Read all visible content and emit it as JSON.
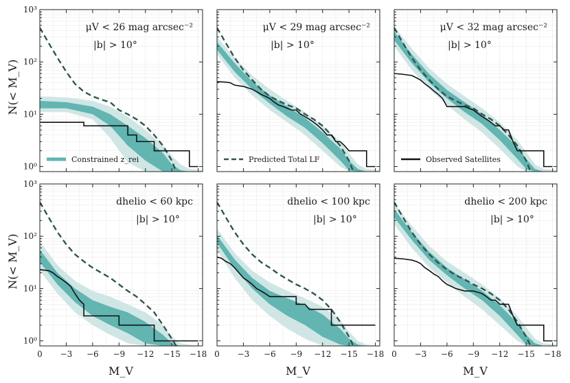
{
  "figure": {
    "ylabel": "N(< M_V)",
    "xlabel": "M_V",
    "legend": {
      "band": "Constrained z_rei",
      "dashed": "Predicted Total LF",
      "solid": "Observed Satellites"
    }
  },
  "colors": {
    "band_outer": "#cfe6e5",
    "band_inner": "#62b5b1",
    "dashed": "#2f5550",
    "solid": "#111111",
    "grid": "#e6e6e6"
  },
  "chart_data": [
    {
      "type": "line",
      "annotation": [
        "μV < 26 mag arcsec⁻²",
        "|b| > 10°"
      ],
      "legend_entry": "band",
      "x": [
        0,
        -3,
        -6,
        -9,
        -12,
        -15,
        -18
      ],
      "xlim": [
        0,
        -18.5
      ],
      "ylim": [
        0.8,
        1000
      ],
      "yscale": "log",
      "xticks": [
        "0",
        "−3",
        "−6",
        "−9",
        "−12",
        "−15",
        "−18"
      ],
      "yticks": [
        "10⁰",
        "10¹",
        "10²",
        "10³"
      ],
      "grid": true,
      "dashed_x": [
        0,
        -1,
        -2,
        -3,
        -4,
        -5,
        -6,
        -7,
        -8,
        -9,
        -10,
        -11,
        -12,
        -13,
        -14,
        -15,
        -15.5
      ],
      "dashed_y": [
        450,
        230,
        120,
        65,
        38,
        27,
        22,
        19,
        17,
        12,
        10,
        8,
        6,
        4,
        2.5,
        1.3,
        0.8
      ],
      "solid_x": [
        0,
        -5,
        -5,
        -10,
        -10,
        -11,
        -11,
        -12,
        -12,
        -13,
        -13,
        -14,
        -14,
        -17,
        -17,
        -18
      ],
      "solid_y": [
        7,
        7,
        6,
        6,
        4,
        4,
        3,
        3,
        3,
        3,
        2,
        2,
        2,
        2,
        1,
        1
      ],
      "outer_x": [
        0,
        -3,
        -6,
        -8,
        -10,
        -12,
        -14,
        -15,
        -16,
        -17,
        -18.5
      ],
      "outer_hi": [
        22,
        21,
        18,
        14,
        9,
        5,
        2.5,
        1.6,
        1.1,
        0.9,
        0.85
      ],
      "outer_lo": [
        11,
        11,
        8,
        3.5,
        1.2,
        0.8,
        0.8,
        0.8,
        0.8,
        0.8,
        0.8
      ],
      "inner_x": [
        0,
        -3,
        -6,
        -8,
        -10,
        -12,
        -14,
        -15,
        -16,
        -17,
        -18.5
      ],
      "inner_hi": [
        18,
        17,
        14,
        10,
        6,
        3.5,
        1.8,
        1.1,
        0.85,
        0.8,
        0.8
      ],
      "inner_lo": [
        13,
        13,
        10,
        6,
        2.5,
        1.3,
        0.8,
        0.8,
        0.8,
        0.8,
        0.8
      ]
    },
    {
      "type": "line",
      "annotation": [
        "μV < 29 mag arcsec⁻²",
        "|b| > 10°"
      ],
      "legend_entry": "dashed",
      "x": [
        0,
        -3,
        -6,
        -9,
        -12,
        -15,
        -18
      ],
      "xlim": [
        0,
        -18.5
      ],
      "ylim": [
        0.8,
        1000
      ],
      "yscale": "log",
      "xticks": [
        "0",
        "−3",
        "−6",
        "−9",
        "−12",
        "−15",
        "−18"
      ],
      "yticks": [
        "10⁰",
        "10¹",
        "10²",
        "10³"
      ],
      "grid": true,
      "dashed_x": [
        0,
        -1,
        -2,
        -3,
        -4,
        -5,
        -6,
        -7,
        -8,
        -9,
        -10,
        -11,
        -12,
        -13,
        -14,
        -15,
        -15.5
      ],
      "dashed_y": [
        450,
        230,
        120,
        70,
        45,
        30,
        22,
        18,
        15,
        13,
        10,
        8,
        6,
        4,
        2.5,
        1.3,
        0.8
      ],
      "solid_x": [
        0,
        -1,
        -1.5,
        -2,
        -3,
        -4,
        -4.5,
        -5,
        -5.5,
        -6,
        -6.5,
        -7,
        -7.5,
        -8,
        -8.5,
        -9,
        -9.5,
        -10,
        -10.5,
        -11,
        -11.5,
        -12,
        -12.5,
        -13,
        -13.5,
        -14,
        -14.5,
        -15,
        -15.5,
        -17,
        -17,
        -18
      ],
      "solid_y": [
        42,
        41,
        40,
        36,
        34,
        30,
        27,
        24,
        22,
        20,
        17,
        15,
        14,
        13,
        12,
        12,
        10,
        9,
        8,
        7,
        6,
        5,
        4,
        4,
        3,
        3,
        2.5,
        2,
        2,
        2,
        1,
        1
      ],
      "outer_x": [
        0,
        -2,
        -4,
        -6,
        -8,
        -10,
        -12,
        -14,
        -15,
        -16,
        -17,
        -18.5
      ],
      "outer_hi": [
        300,
        120,
        55,
        30,
        18,
        11,
        6,
        3,
        1.8,
        1.1,
        0.9,
        0.85
      ],
      "outer_lo": [
        140,
        50,
        23,
        12,
        7,
        4,
        2,
        1,
        0.8,
        0.8,
        0.8,
        0.8
      ],
      "inner_x": [
        0,
        -2,
        -4,
        -6,
        -8,
        -10,
        -12,
        -14,
        -15,
        -16,
        -17,
        -18.5
      ],
      "inner_hi": [
        240,
        95,
        42,
        23,
        14,
        8.5,
        4.5,
        2.2,
        1.3,
        0.9,
        0.8,
        0.8
      ],
      "inner_lo": [
        170,
        65,
        30,
        16,
        9,
        5.5,
        2.8,
        1.3,
        0.85,
        0.8,
        0.8,
        0.8
      ]
    },
    {
      "type": "line",
      "annotation": [
        "μV < 32 mag arcsec⁻²",
        "|b| > 10°"
      ],
      "legend_entry": "solid",
      "x": [
        0,
        -3,
        -6,
        -9,
        -12,
        -15,
        -18
      ],
      "xlim": [
        0,
        -18.5
      ],
      "ylim": [
        0.8,
        1000
      ],
      "yscale": "log",
      "xticks": [
        "0",
        "−3",
        "−6",
        "−9",
        "−12",
        "−15",
        "−18"
      ],
      "yticks": [
        "10⁰",
        "10¹",
        "10²",
        "10³"
      ],
      "grid": true,
      "dashed_x": [
        0,
        -1,
        -2,
        -3,
        -4,
        -5,
        -6,
        -7,
        -8,
        -9,
        -10,
        -11,
        -12,
        -13,
        -14,
        -15,
        -15.5
      ],
      "dashed_y": [
        450,
        230,
        120,
        70,
        45,
        30,
        22,
        18,
        15,
        13,
        10,
        8,
        6,
        4,
        2.5,
        1.3,
        0.8
      ],
      "solid_x": [
        0,
        -1,
        -2,
        -2.5,
        -3,
        -3.5,
        -4,
        -4.5,
        -5,
        -5.5,
        -6,
        -7,
        -8,
        -9,
        -10,
        -10.5,
        -11,
        -11.5,
        -12,
        -12.5,
        -13,
        -13.5,
        -14,
        -17,
        -17,
        -18
      ],
      "solid_y": [
        60,
        58,
        55,
        50,
        45,
        38,
        33,
        28,
        24,
        20,
        14,
        14,
        14,
        12,
        9,
        8,
        7,
        6,
        6,
        5,
        5,
        3,
        2,
        2,
        1,
        1
      ],
      "outer_x": [
        0,
        -2,
        -4,
        -6,
        -8,
        -10,
        -12,
        -14,
        -15,
        -16,
        -17,
        -18.5
      ],
      "outer_hi": [
        480,
        180,
        75,
        38,
        22,
        13,
        7,
        3.2,
        1.9,
        1.1,
        0.9,
        0.85
      ],
      "outer_lo": [
        200,
        70,
        30,
        15,
        8,
        4.5,
        2.2,
        1,
        0.8,
        0.8,
        0.8,
        0.8
      ],
      "inner_x": [
        0,
        -2,
        -4,
        -6,
        -8,
        -10,
        -12,
        -14,
        -15,
        -16,
        -17,
        -18.5
      ],
      "inner_hi": [
        380,
        140,
        58,
        29,
        17,
        10,
        5,
        2.4,
        1.4,
        0.9,
        0.8,
        0.8
      ],
      "inner_lo": [
        260,
        95,
        40,
        20,
        11,
        6.5,
        3.2,
        1.4,
        0.9,
        0.8,
        0.8,
        0.8
      ]
    },
    {
      "type": "line",
      "annotation": [
        "dhelio < 60 kpc",
        "|b| > 10°"
      ],
      "x": [
        0,
        -3,
        -6,
        -9,
        -12,
        -15,
        -18
      ],
      "xlim": [
        0,
        -18.5
      ],
      "ylim": [
        0.8,
        1000
      ],
      "yscale": "log",
      "xticks": [
        "0",
        "−3",
        "−6",
        "−9",
        "−12",
        "−15",
        "−18"
      ],
      "yticks": [
        "10⁰",
        "10¹",
        "10²",
        "10³"
      ],
      "grid": true,
      "dashed_x": [
        0,
        -1,
        -2,
        -3,
        -4,
        -5,
        -6,
        -7,
        -8,
        -9,
        -10,
        -11,
        -12,
        -13,
        -14,
        -15,
        -15.5
      ],
      "dashed_y": [
        450,
        230,
        120,
        70,
        45,
        33,
        25,
        20,
        16,
        12,
        9,
        7,
        5,
        3.5,
        2,
        1.1,
        0.8
      ],
      "solid_x": [
        0,
        -1,
        -1.5,
        -2,
        -2.5,
        -3,
        -3.5,
        -4,
        -4.5,
        -5,
        -5,
        -9,
        -9,
        -10,
        -10.5,
        -13,
        -13,
        -18
      ],
      "solid_y": [
        23,
        22,
        20,
        17,
        15,
        13,
        11,
        8,
        6,
        5,
        3,
        3,
        2,
        2,
        2,
        2,
        1,
        1
      ],
      "outer_x": [
        0,
        -2,
        -4,
        -6,
        -8,
        -10,
        -12,
        -14,
        -15,
        -16,
        -17,
        -18.5
      ],
      "outer_hi": [
        80,
        28,
        14,
        9,
        7,
        5,
        3.5,
        2,
        1.2,
        0.9,
        0.85,
        0.8
      ],
      "outer_lo": [
        22,
        8,
        3.5,
        2,
        1.3,
        0.9,
        0.8,
        0.8,
        0.8,
        0.8,
        0.8,
        0.8
      ],
      "inner_x": [
        0,
        -2,
        -4,
        -6,
        -8,
        -10,
        -12,
        -14,
        -15,
        -16,
        -17,
        -18.5
      ],
      "inner_hi": [
        55,
        20,
        10,
        6,
        4.5,
        3.5,
        2.3,
        1.3,
        0.9,
        0.8,
        0.8,
        0.8
      ],
      "inner_lo": [
        32,
        12,
        5.5,
        3,
        2,
        1.4,
        0.9,
        0.8,
        0.8,
        0.8,
        0.8,
        0.8
      ]
    },
    {
      "type": "line",
      "annotation": [
        "dhelio < 100 kpc",
        "|b| > 10°"
      ],
      "x": [
        0,
        -3,
        -6,
        -9,
        -12,
        -15,
        -18
      ],
      "xlim": [
        0,
        -18.5
      ],
      "ylim": [
        0.8,
        1000
      ],
      "yscale": "log",
      "xticks": [
        "0",
        "−3",
        "−6",
        "−9",
        "−12",
        "−15",
        "−18"
      ],
      "yticks": [
        "10⁰",
        "10¹",
        "10²",
        "10³"
      ],
      "grid": true,
      "dashed_x": [
        0,
        -1,
        -2,
        -3,
        -4,
        -5,
        -6,
        -7,
        -8,
        -9,
        -10,
        -11,
        -12,
        -13,
        -14,
        -15,
        -15.5
      ],
      "dashed_y": [
        450,
        230,
        120,
        70,
        45,
        32,
        25,
        19,
        15,
        12,
        10,
        8,
        6,
        4,
        2.3,
        1.2,
        0.8
      ],
      "solid_x": [
        0,
        -0.5,
        -1,
        -1.5,
        -2,
        -2.5,
        -3,
        -3.5,
        -4,
        -4.5,
        -5,
        -5.5,
        -6,
        -6,
        -9,
        -9,
        -10,
        -10.5,
        -13,
        -13,
        -18
      ],
      "solid_y": [
        40,
        38,
        33,
        30,
        25,
        20,
        16,
        14,
        12,
        10,
        9,
        8,
        7,
        7,
        7,
        5,
        5,
        4,
        4,
        2,
        2
      ],
      "outer_x": [
        0,
        -2,
        -4,
        -6,
        -8,
        -10,
        -12,
        -14,
        -15,
        -16,
        -17,
        -18.5
      ],
      "outer_hi": [
        140,
        48,
        22,
        13,
        9,
        6.5,
        4.5,
        2.5,
        1.5,
        1,
        0.85,
        0.8
      ],
      "outer_lo": [
        55,
        16,
        6,
        3,
        1.7,
        1.1,
        0.8,
        0.8,
        0.8,
        0.8,
        0.8,
        0.8
      ],
      "inner_x": [
        0,
        -2,
        -4,
        -6,
        -8,
        -10,
        -12,
        -14,
        -15,
        -16,
        -17,
        -18.5
      ],
      "inner_hi": [
        105,
        36,
        16,
        9,
        6.5,
        4.8,
        3.2,
        1.7,
        1.1,
        0.85,
        0.8,
        0.8
      ],
      "inner_lo": [
        75,
        24,
        10,
        5,
        3,
        2,
        1.2,
        0.85,
        0.8,
        0.8,
        0.8,
        0.8
      ]
    },
    {
      "type": "line",
      "annotation": [
        "dhelio < 200 kpc",
        "|b| > 10°"
      ],
      "x": [
        0,
        -3,
        -6,
        -9,
        -12,
        -15,
        -18
      ],
      "xlim": [
        0,
        -18.5
      ],
      "ylim": [
        0.8,
        1000
      ],
      "yscale": "log",
      "xticks": [
        "0",
        "−3",
        "−6",
        "−9",
        "−12",
        "−15",
        "−18"
      ],
      "yticks": [
        "10⁰",
        "10¹",
        "10²",
        "10³"
      ],
      "grid": true,
      "dashed_x": [
        0,
        -1,
        -2,
        -3,
        -4,
        -5,
        -6,
        -7,
        -8,
        -9,
        -10,
        -11,
        -12,
        -13,
        -14,
        -15,
        -15.5
      ],
      "dashed_y": [
        450,
        230,
        120,
        70,
        45,
        31,
        23,
        18,
        15,
        12,
        10,
        8,
        6,
        4,
        2.3,
        1.2,
        0.8
      ],
      "solid_x": [
        0,
        -1,
        -2,
        -2.5,
        -3,
        -3.5,
        -4,
        -4.5,
        -5,
        -5.5,
        -6,
        -6.5,
        -7,
        -8,
        -9,
        -10,
        -10.5,
        -11,
        -11.5,
        -12,
        -13,
        -13.5,
        -14,
        -17,
        -17,
        -18
      ],
      "solid_y": [
        38,
        37,
        35,
        33,
        30,
        25,
        22,
        19,
        17,
        14,
        12,
        11,
        10,
        9,
        9,
        8,
        7,
        6,
        6,
        5,
        5,
        3,
        2,
        2,
        1,
        1
      ],
      "outer_x": [
        0,
        -2,
        -4,
        -6,
        -8,
        -10,
        -12,
        -14,
        -15,
        -16,
        -17,
        -18.5
      ],
      "outer_hi": [
        420,
        160,
        65,
        33,
        20,
        12,
        6.5,
        3,
        1.8,
        1.1,
        0.9,
        0.85
      ],
      "outer_lo": [
        170,
        60,
        25,
        13,
        7,
        4,
        2,
        1,
        0.8,
        0.8,
        0.8,
        0.8
      ],
      "inner_x": [
        0,
        -2,
        -4,
        -6,
        -8,
        -10,
        -12,
        -14,
        -15,
        -16,
        -17,
        -18.5
      ],
      "inner_hi": [
        330,
        120,
        50,
        25,
        15,
        9,
        4.8,
        2.2,
        1.3,
        0.9,
        0.8,
        0.8
      ],
      "inner_lo": [
        230,
        85,
        35,
        18,
        10,
        6,
        3,
        1.3,
        0.85,
        0.8,
        0.8,
        0.8
      ]
    }
  ]
}
